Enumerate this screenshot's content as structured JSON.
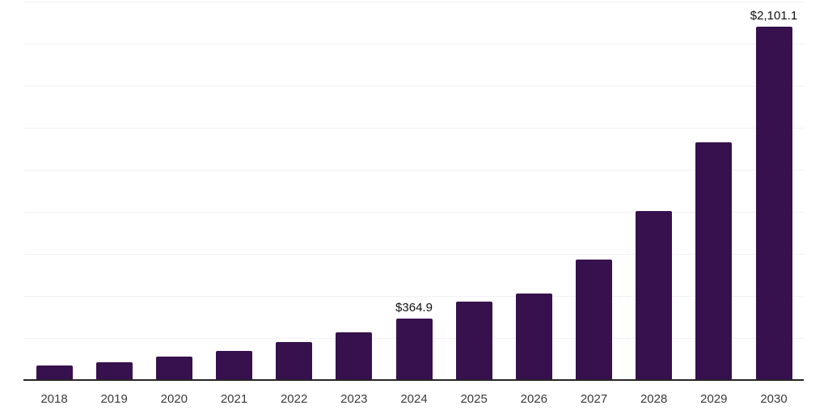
{
  "chart_data": {
    "type": "bar",
    "title": "",
    "xlabel": "",
    "ylabel": "",
    "categories": [
      "2018",
      "2019",
      "2020",
      "2021",
      "2022",
      "2023",
      "2024",
      "2025",
      "2026",
      "2027",
      "2028",
      "2029",
      "2030"
    ],
    "values": [
      86.5,
      107.2,
      139.4,
      172.1,
      225.0,
      285.9,
      364.9,
      465.9,
      514.4,
      718.3,
      1005.0,
      1412.9,
      2101.1
    ],
    "value_labels": [
      "",
      "",
      "",
      "",
      "",
      "",
      "$364.9",
      "",
      "",
      "",
      "",
      "",
      "$2,101.1"
    ],
    "ylim": [
      0,
      2250
    ],
    "grid_interval": 250,
    "grid": "horizontal-only",
    "legend_position": "none",
    "y_axis_tick_labels_visible": false
  },
  "colors": {
    "bar": "#37114D",
    "axis_line": "#262626",
    "gridline": "#F2F0F3",
    "year_label": "#3A3A3A",
    "value_label": "#0F0F0F",
    "background": "#FFFFFF"
  }
}
